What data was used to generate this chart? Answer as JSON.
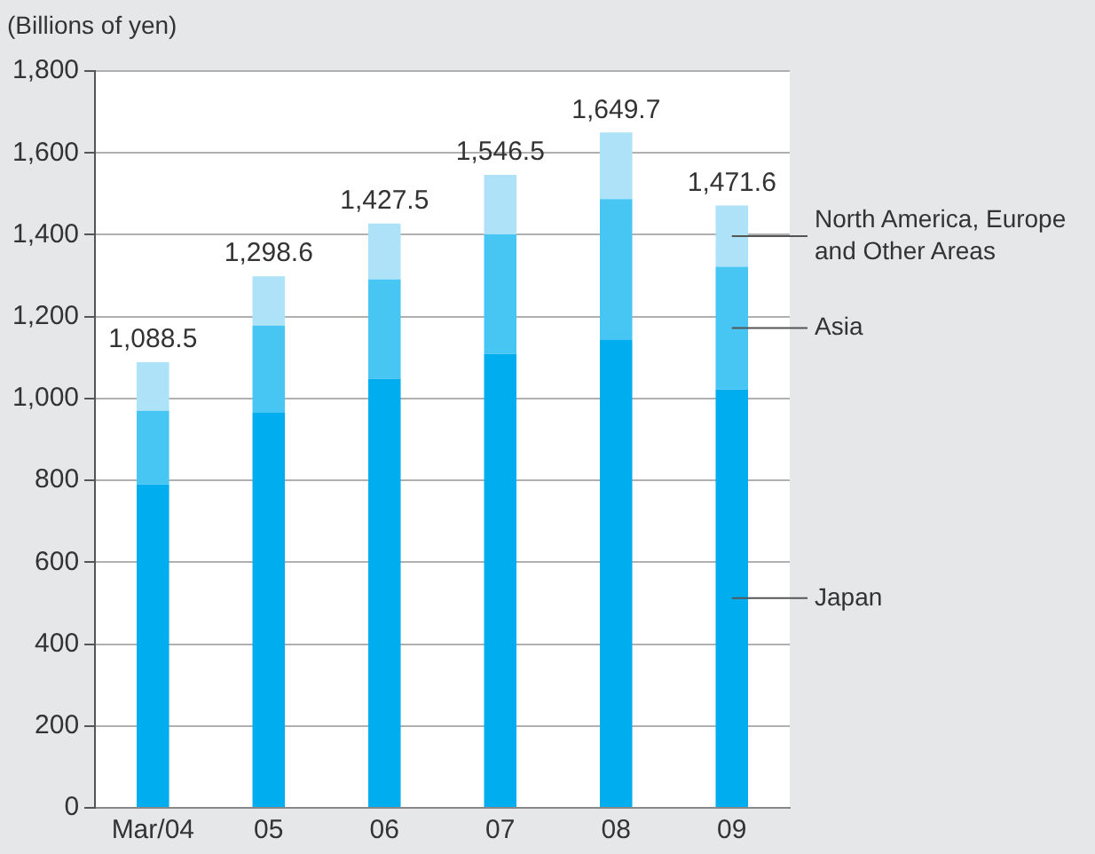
{
  "chart_data": {
    "type": "bar",
    "ylabel": "(Billions of yen)",
    "stacked": true,
    "categories": [
      "Mar/04",
      "05",
      "06",
      "07",
      "08",
      "09"
    ],
    "series": [
      {
        "name": "Japan",
        "color": "#00aeef",
        "values": [
          790,
          965,
          1048,
          1109,
          1143,
          1022
        ]
      },
      {
        "name": "Asia",
        "color": "#47c6f4",
        "values": [
          180,
          213,
          243,
          292,
          344,
          300
        ]
      },
      {
        "name": "North America, Europe and Other Areas",
        "color": "#aee2f8",
        "values": [
          118.5,
          120.6,
          136.5,
          145.5,
          162.7,
          149.6
        ]
      }
    ],
    "totals": [
      "1,088.5",
      "1,298.6",
      "1,427.5",
      "1,546.5",
      "1,649.7",
      "1,471.6"
    ],
    "ylim": [
      0,
      1800
    ],
    "yticks": [
      0,
      {
        "value": 200,
        "label": "200"
      },
      {
        "value": 400,
        "label": "400"
      },
      {
        "value": 600,
        "label": "600"
      },
      {
        "value": 800,
        "label": "800"
      },
      {
        "value": 1000,
        "label": "1,000"
      },
      {
        "value": 1200,
        "label": "1,200"
      },
      {
        "value": 1400,
        "label": "1,400"
      },
      {
        "value": 1600,
        "label": "1,600"
      },
      {
        "value": 1800,
        "label": "1,800"
      }
    ],
    "grid": "y",
    "legend": false
  }
}
